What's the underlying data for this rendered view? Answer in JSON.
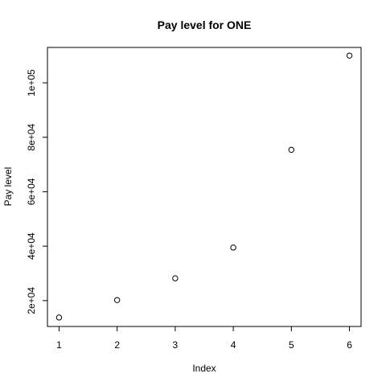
{
  "chart_data": {
    "type": "scatter",
    "title": "Pay level for  ONE",
    "xlabel": "Index",
    "ylabel": "Pay level",
    "x": [
      1,
      2,
      3,
      4,
      5,
      6
    ],
    "y": [
      13800,
      20200,
      28200,
      39500,
      75400,
      110000
    ],
    "xlim": [
      0.8,
      6.2
    ],
    "ylim": [
      10500,
      113000
    ],
    "x_ticks": [
      1,
      2,
      3,
      4,
      5,
      6
    ],
    "x_tick_labels": [
      "1",
      "2",
      "3",
      "4",
      "5",
      "6"
    ],
    "y_ticks": [
      20000,
      40000,
      60000,
      80000,
      100000
    ],
    "y_tick_labels": [
      "2e+04",
      "4e+04",
      "6e+04",
      "8e+04",
      "1e+05"
    ],
    "grid": false,
    "legend": "none",
    "marker": "open-circle",
    "color": "#000000"
  }
}
